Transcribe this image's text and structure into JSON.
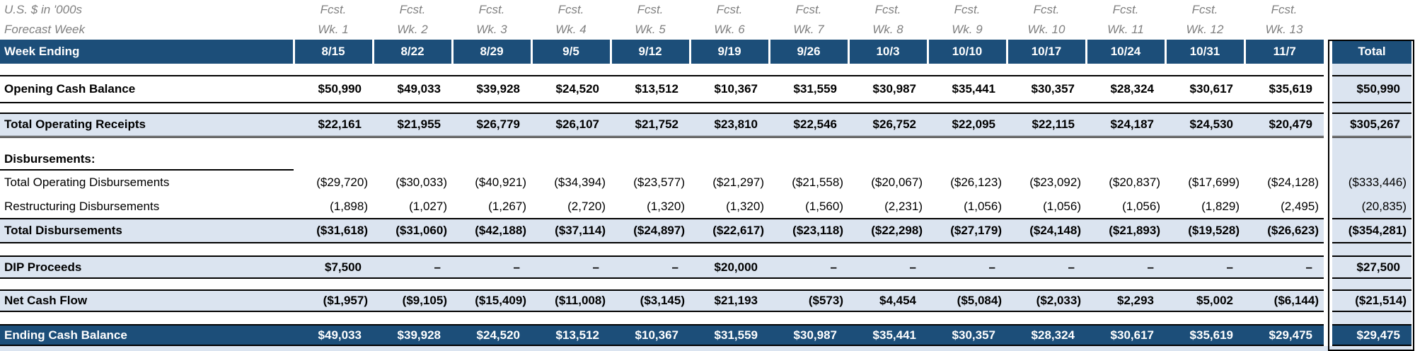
{
  "title_meta": {
    "units_label": "U.S. $ in '000s",
    "forecast_week_label": "Forecast Week",
    "fcst_label": "Fcst.",
    "week_numbers": [
      "Wk. 1",
      "Wk. 2",
      "Wk. 3",
      "Wk. 4",
      "Wk. 5",
      "Wk. 6",
      "Wk. 7",
      "Wk. 8",
      "Wk. 9",
      "Wk. 10",
      "Wk. 11",
      "Wk. 12",
      "Wk. 13"
    ],
    "week_ending_label": "Week Ending",
    "dates": [
      "8/15",
      "8/22",
      "8/29",
      "9/5",
      "9/12",
      "9/19",
      "9/26",
      "10/3",
      "10/10",
      "10/17",
      "10/24",
      "10/31",
      "11/7"
    ],
    "total_label": "Total"
  },
  "section": {
    "disbursements_label": "Disbursements:"
  },
  "colors": {
    "header_blue": "#1C4E79",
    "row_light_blue": "#DBE4F0",
    "meta_gray": "#808080"
  },
  "rows": [
    {
      "id": "opening_cash_balance",
      "label": "Opening Cash Balance",
      "values": [
        "$50,990",
        "$49,033",
        "$39,928",
        "$24,520",
        "$13,512",
        "$10,367",
        "$31,559",
        "$30,987",
        "$35,441",
        "$30,357",
        "$28,324",
        "$30,617",
        "$35,619"
      ],
      "total": "$50,990"
    },
    {
      "id": "total_operating_receipts",
      "label": "Total Operating Receipts",
      "values": [
        "$22,161",
        "$21,955",
        "$26,779",
        "$26,107",
        "$21,752",
        "$23,810",
        "$22,546",
        "$26,752",
        "$22,095",
        "$22,115",
        "$24,187",
        "$24,530",
        "$20,479"
      ],
      "total": "$305,267"
    },
    {
      "id": "total_operating_disbursements",
      "label": "Total Operating Disbursements",
      "values": [
        "($29,720)",
        "($30,033)",
        "($40,921)",
        "($34,394)",
        "($23,577)",
        "($21,297)",
        "($21,558)",
        "($20,067)",
        "($26,123)",
        "($23,092)",
        "($20,837)",
        "($17,699)",
        "($24,128)"
      ],
      "total": "($333,446)"
    },
    {
      "id": "restructuring_disbursements",
      "label": "Restructuring Disbursements",
      "values": [
        "(1,898)",
        "(1,027)",
        "(1,267)",
        "(2,720)",
        "(1,320)",
        "(1,320)",
        "(1,560)",
        "(2,231)",
        "(1,056)",
        "(1,056)",
        "(1,056)",
        "(1,829)",
        "(2,495)"
      ],
      "total": "(20,835)"
    },
    {
      "id": "total_disbursements",
      "label": "Total Disbursements",
      "values": [
        "($31,618)",
        "($31,060)",
        "($42,188)",
        "($37,114)",
        "($24,897)",
        "($22,617)",
        "($23,118)",
        "($22,298)",
        "($27,179)",
        "($24,148)",
        "($21,893)",
        "($19,528)",
        "($26,623)"
      ],
      "total": "($354,281)"
    },
    {
      "id": "dip_proceeds",
      "label": "DIP Proceeds",
      "values": [
        "$7,500",
        "–",
        "–",
        "–",
        "–",
        "$20,000",
        "–",
        "–",
        "–",
        "–",
        "–",
        "–",
        "–"
      ],
      "total": "$27,500"
    },
    {
      "id": "net_cash_flow",
      "label": "Net Cash Flow",
      "values": [
        "($1,957)",
        "($9,105)",
        "($15,409)",
        "($11,008)",
        "($3,145)",
        "$21,193",
        "($573)",
        "$4,454",
        "($5,084)",
        "($2,033)",
        "$2,293",
        "$5,002",
        "($6,144)"
      ],
      "total": "($21,514)"
    },
    {
      "id": "ending_cash_balance",
      "label": "Ending Cash Balance",
      "values": [
        "$49,033",
        "$39,928",
        "$24,520",
        "$13,512",
        "$10,367",
        "$31,559",
        "$30,987",
        "$35,441",
        "$30,357",
        "$28,324",
        "$30,617",
        "$35,619",
        "$29,475"
      ],
      "total": "$29,475"
    }
  ]
}
